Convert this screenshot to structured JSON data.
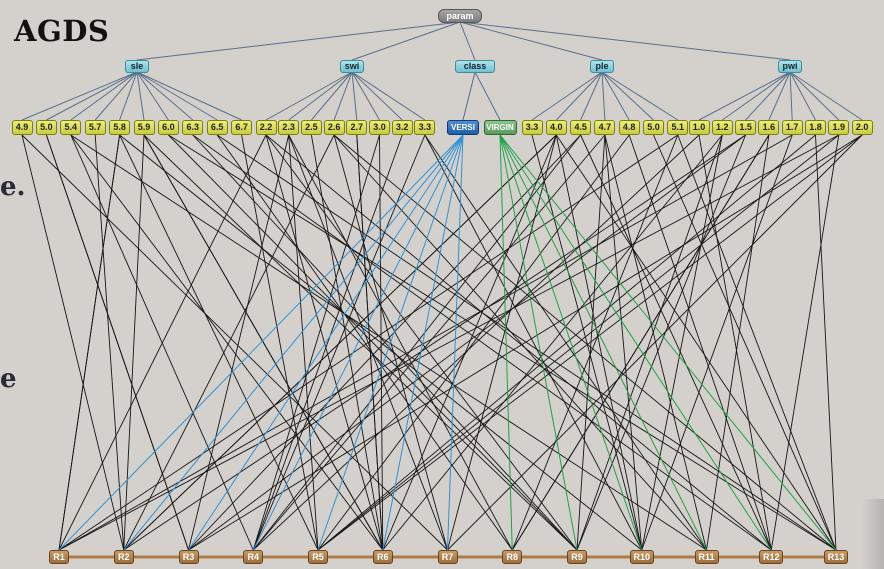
{
  "title": "AGDS",
  "side_text": [
    "e.",
    "e"
  ],
  "root": "param",
  "params": [
    {
      "id": "sle",
      "label": "sle"
    },
    {
      "id": "swi",
      "label": "swi"
    },
    {
      "id": "class",
      "label": "class"
    },
    {
      "id": "ple",
      "label": "ple"
    },
    {
      "id": "pwi",
      "label": "pwi"
    }
  ],
  "values": {
    "sle": [
      "4.9",
      "5.0",
      "5.4",
      "5.7",
      "5.8",
      "5.9",
      "6.0",
      "6.3",
      "6.5",
      "6.7"
    ],
    "swi": [
      "2.2",
      "2.3",
      "2.5",
      "2.6",
      "2.7",
      "3.0",
      "3.2",
      "3.3"
    ],
    "class": [
      "VERSI",
      "VIRGIN"
    ],
    "ple": [
      "3.3",
      "4.0",
      "4.5",
      "4.7",
      "4.8",
      "5.0",
      "5.1"
    ],
    "pwi": [
      "1.0",
      "1.2",
      "1.5",
      "1.6",
      "1.7",
      "1.8",
      "1.9",
      "2.0"
    ]
  },
  "records": [
    "R1",
    "R2",
    "R3",
    "R4",
    "R5",
    "R6",
    "R7",
    "R8",
    "R9",
    "R10",
    "R11",
    "R12",
    "R13"
  ],
  "colors": {
    "background": "#d4d1cd",
    "tree_line": "#5a6f8a",
    "record_line": "#151515",
    "versi_line": "#2f93d6",
    "virgin_line": "#1fa24a",
    "record_chain": "#b07a44"
  }
}
